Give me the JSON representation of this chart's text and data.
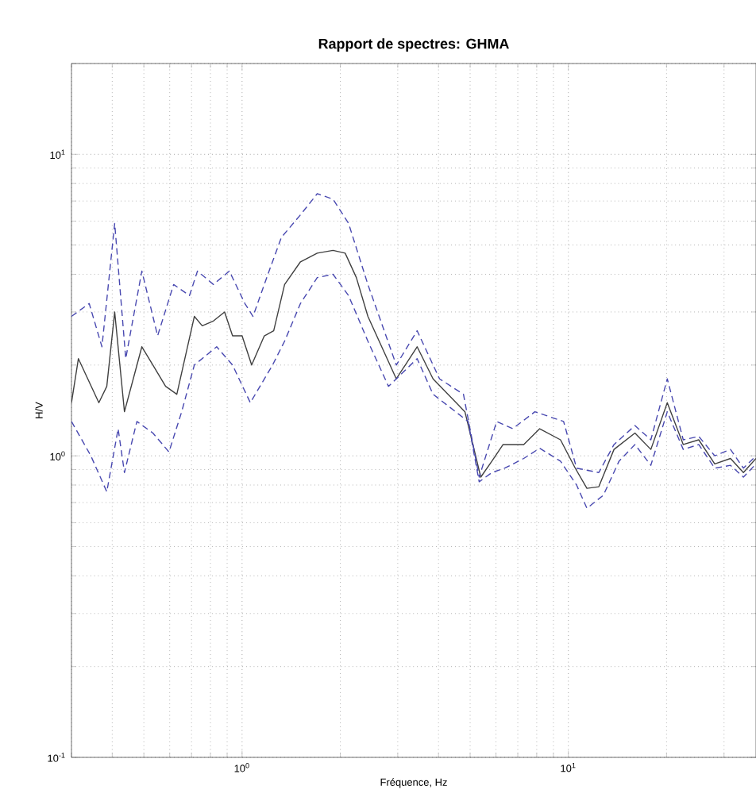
{
  "chart_data": {
    "type": "line",
    "title": "Rapport de spectres: GHMA",
    "xlabel": "Fréquence, Hz",
    "ylabel": "H/V",
    "log": "xy",
    "grid": true,
    "xlim": [
      0.3,
      37.6
    ],
    "ylim": [
      0.1,
      20
    ],
    "xticks": [
      {
        "value": 1,
        "label": "10$^{0}$"
      },
      {
        "value": 10,
        "label": "10$^{1}$"
      }
    ],
    "yticks": [
      {
        "value": 0.1,
        "label": "10$^{-1}$"
      },
      {
        "value": 1,
        "label": "10$^{0}$"
      },
      {
        "value": 10,
        "label": "10$^{1}$"
      }
    ],
    "series": [
      {
        "color": "#404040",
        "line_style": "solid",
        "x": [
          0.3,
          0.315,
          0.364,
          0.385,
          0.407,
          0.436,
          0.493,
          0.533,
          0.583,
          0.631,
          0.714,
          0.755,
          0.817,
          0.884,
          0.935,
          1.0,
          1.07,
          1.17,
          1.25,
          1.35,
          1.51,
          1.7,
          1.9,
          2.07,
          2.24,
          2.43,
          2.97,
          3.44,
          3.85,
          4.82,
          5.39,
          5.83,
          6.31,
          7.3,
          8.17,
          9.46,
          10.5,
          11.4,
          12.4,
          13.8,
          16.0,
          17.9,
          20.1,
          22.5,
          25.1,
          28.1,
          31.4,
          34.4,
          37.6
        ],
        "values": [
          1.5,
          2.1,
          1.5,
          1.7,
          3.0,
          1.4,
          2.3,
          2.0,
          1.7,
          1.6,
          2.9,
          2.7,
          2.8,
          3.0,
          2.5,
          2.5,
          2.0,
          2.5,
          2.6,
          3.7,
          4.4,
          4.7,
          4.8,
          4.7,
          3.9,
          2.9,
          1.8,
          2.3,
          1.8,
          1.4,
          0.85,
          0.96,
          1.09,
          1.09,
          1.23,
          1.13,
          0.91,
          0.78,
          0.79,
          1.05,
          1.19,
          1.05,
          1.5,
          1.09,
          1.13,
          0.94,
          0.98,
          0.88,
          0.98
        ]
      },
      {
        "color": "#4848b0",
        "line_style": "dashed",
        "x": [
          0.3,
          0.34,
          0.372,
          0.407,
          0.44,
          0.493,
          0.551,
          0.617,
          0.69,
          0.73,
          0.817,
          0.914,
          1.02,
          1.08,
          1.21,
          1.32,
          1.51,
          1.7,
          1.9,
          2.12,
          2.43,
          2.97,
          3.44,
          4.03,
          4.77,
          5.33,
          6.03,
          6.75,
          7.9,
          9.67,
          10.6,
          12.4,
          13.8,
          16.0,
          17.9,
          20.1,
          22.5,
          25.1,
          28.1,
          31.4,
          34.4,
          37.6
        ],
        "values": [
          2.9,
          3.2,
          2.3,
          5.9,
          2.1,
          4.1,
          2.5,
          3.7,
          3.4,
          4.1,
          3.7,
          4.1,
          3.2,
          2.9,
          4.1,
          5.3,
          6.3,
          7.4,
          7.1,
          5.9,
          3.7,
          2.0,
          2.6,
          1.8,
          1.6,
          0.85,
          1.3,
          1.23,
          1.4,
          1.3,
          0.91,
          0.88,
          1.09,
          1.26,
          1.13,
          1.8,
          1.13,
          1.16,
          1.0,
          1.05,
          0.91,
          1.0
        ]
      },
      {
        "color": "#4848b0",
        "line_style": "dashed",
        "x": [
          0.3,
          0.344,
          0.385,
          0.417,
          0.436,
          0.476,
          0.533,
          0.597,
          0.653,
          0.714,
          0.836,
          0.935,
          1.06,
          1.24,
          1.35,
          1.51,
          1.7,
          1.9,
          2.12,
          2.43,
          2.81,
          3.44,
          3.85,
          4.93,
          5.33,
          5.83,
          6.38,
          7.3,
          8.17,
          9.46,
          10.6,
          11.4,
          12.8,
          14.3,
          16.0,
          17.9,
          20.1,
          22.5,
          25.1,
          28.1,
          31.4,
          34.4,
          37.6
        ],
        "values": [
          1.3,
          1.0,
          0.76,
          1.23,
          0.88,
          1.3,
          1.19,
          1.03,
          1.4,
          2.0,
          2.3,
          2.0,
          1.5,
          2.0,
          2.4,
          3.2,
          3.9,
          4.0,
          3.4,
          2.4,
          1.7,
          2.1,
          1.6,
          1.3,
          0.82,
          0.88,
          0.91,
          0.98,
          1.06,
          0.96,
          0.8,
          0.67,
          0.74,
          0.96,
          1.09,
          0.93,
          1.4,
          1.05,
          1.09,
          0.91,
          0.93,
          0.85,
          0.94
        ]
      }
    ]
  }
}
